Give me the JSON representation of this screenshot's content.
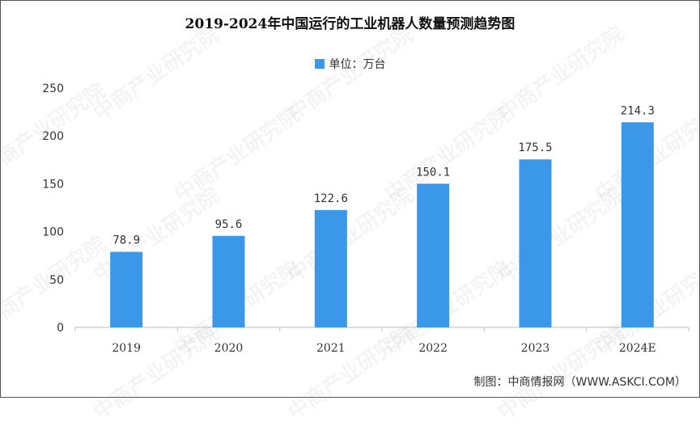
{
  "chart_data": {
    "type": "bar",
    "title": "2019-2024年中国运行的工业机器人数量预测趋势图",
    "legend": "单位：万台",
    "legend_position": "top-center",
    "categories": [
      "2019",
      "2020",
      "2021",
      "2022",
      "2023",
      "2024E"
    ],
    "series": [
      {
        "values": [
          78.9,
          95.6,
          122.6,
          150.1,
          175.5,
          214.3
        ]
      }
    ],
    "data_labels": [
      "78.9",
      "95.6",
      "122.6",
      "150.1",
      "175.5",
      "214.3"
    ],
    "yticks": [
      "0",
      "50",
      "100",
      "150",
      "200",
      "250"
    ],
    "ylim": [
      0,
      250
    ],
    "grid": false,
    "bar_color": "#3b97e8"
  },
  "source": "制图：中商情报网（WWW.ASKCI.COM）",
  "watermark": "中商产业研究院"
}
